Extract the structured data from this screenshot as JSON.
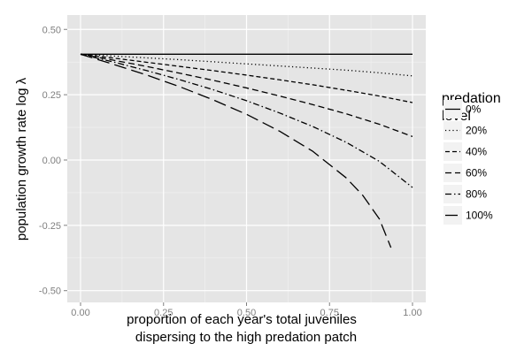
{
  "chart_data": {
    "type": "line",
    "xlabel_lines": [
      "proportion of each year's total juveniles",
      "dispersing to the high predation patch"
    ],
    "ylabel": "population growth rate log λ",
    "xlim": [
      -0.04,
      1.04
    ],
    "ylim": [
      -0.545,
      0.555
    ],
    "xticks": [
      0.0,
      0.25,
      0.5,
      0.75,
      1.0
    ],
    "xtick_labels": [
      "0.00",
      "0.25",
      "0.50",
      "0.75",
      "1.00"
    ],
    "yticks": [
      -0.5,
      -0.25,
      0.0,
      0.25,
      0.5
    ],
    "ytick_labels": [
      "-0.50",
      "-0.25",
      "0.00",
      "0.25",
      "0.50"
    ],
    "grid": true,
    "panel_background": "#e5e5e5",
    "grid_color": "#ffffff",
    "legend": {
      "title_lines": [
        "predation",
        "level"
      ],
      "position": "right"
    },
    "series": [
      {
        "name": "0%",
        "dash": "solid",
        "x": [
          0,
          0.25,
          0.5,
          0.75,
          1.0
        ],
        "y": [
          0.405,
          0.405,
          0.405,
          0.405,
          0.405
        ]
      },
      {
        "name": "20%",
        "dash": "dotted",
        "x": [
          0,
          0.1,
          0.2,
          0.3,
          0.4,
          0.5,
          0.6,
          0.7,
          0.8,
          0.9,
          1.0
        ],
        "y": [
          0.405,
          0.398,
          0.391,
          0.384,
          0.376,
          0.368,
          0.36,
          0.352,
          0.344,
          0.334,
          0.322
        ]
      },
      {
        "name": "40%",
        "dash": "short-dash",
        "x": [
          0,
          0.1,
          0.2,
          0.3,
          0.4,
          0.5,
          0.6,
          0.7,
          0.8,
          0.9,
          1.0
        ],
        "y": [
          0.405,
          0.39,
          0.374,
          0.358,
          0.342,
          0.325,
          0.307,
          0.288,
          0.267,
          0.245,
          0.22
        ]
      },
      {
        "name": "60%",
        "dash": "dash",
        "x": [
          0,
          0.1,
          0.2,
          0.3,
          0.4,
          0.5,
          0.6,
          0.7,
          0.8,
          0.9,
          1.0
        ],
        "y": [
          0.405,
          0.382,
          0.358,
          0.332,
          0.305,
          0.276,
          0.245,
          0.212,
          0.177,
          0.137,
          0.09
        ]
      },
      {
        "name": "80%",
        "dash": "dash-dot",
        "x": [
          0,
          0.1,
          0.2,
          0.3,
          0.4,
          0.5,
          0.6,
          0.7,
          0.8,
          0.9,
          1.0
        ],
        "y": [
          0.405,
          0.375,
          0.342,
          0.307,
          0.269,
          0.227,
          0.18,
          0.128,
          0.068,
          -0.005,
          -0.105
        ]
      },
      {
        "name": "100%",
        "dash": "long-dash",
        "x": [
          0,
          0.1,
          0.2,
          0.3,
          0.4,
          0.5,
          0.6,
          0.7,
          0.8,
          0.85,
          0.9,
          0.935
        ],
        "y": [
          0.405,
          0.366,
          0.325,
          0.28,
          0.23,
          0.175,
          0.11,
          0.033,
          -0.068,
          -0.135,
          -0.225,
          -0.335
        ]
      }
    ]
  }
}
